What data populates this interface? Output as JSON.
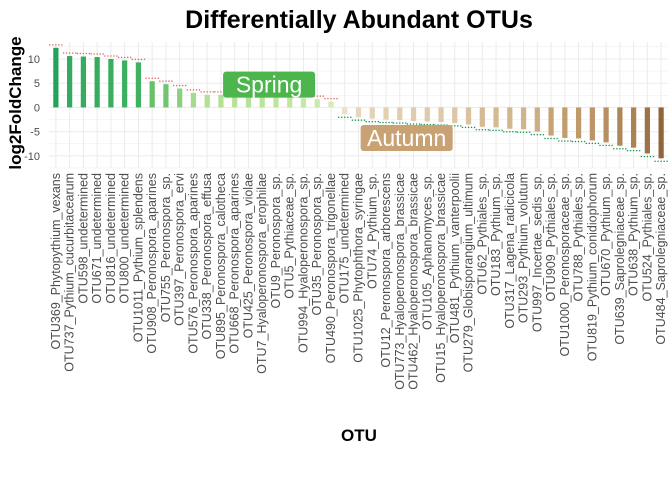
{
  "chart_data": {
    "type": "bar",
    "title": "Differentially Abundant OTUs",
    "xlabel": "OTU",
    "ylabel": "log2FoldChange",
    "ylim": [
      -12.5,
      13.5
    ],
    "yticks": [
      -10,
      -5,
      0,
      5,
      10
    ],
    "grid": true,
    "legend": "none",
    "colors": {
      "high": "#1fa35a",
      "low": "#8b5e34",
      "dots": "#1a9850"
    },
    "annotations": [
      {
        "text": "Spring",
        "category_index": 15,
        "value": 4.7,
        "color": "#4cb64c"
      },
      {
        "text": "Autumn",
        "category_index": 25,
        "value": -6.3,
        "color": "#c8a273"
      }
    ],
    "categories": [
      "OTU369_Phytopythium_vexans",
      "OTU737_Pythium_cucurbitacearum",
      "OTU598_undetermined",
      "OTU671_undetermined",
      "OTU816_undetermined",
      "OTU800_undetermined",
      "OTU1011_Pythium_splendens",
      "OTU908_Peronospora_aparines",
      "OTU755_Peronospora_sp.",
      "OTU397_Peronospora_ervi",
      "OTU576_Peronospora_aparines",
      "OTU338_Peronospora_effusa",
      "OTU895_Peronospora_calotheca",
      "OTU668_Peronospora_aparines",
      "OTU425_Peronospora_violae",
      "OTU7_Hyaloperonospora_erophilae",
      "OTU9_Peronospora_sp.",
      "OTU5_Pythiaceae_sp.",
      "OTU994_Hyaloperonospora_sp.",
      "OTU35_Peronospora_sp.",
      "OTU490_Peronospora_trigonellae",
      "OTU175_undetermined",
      "OTU1025_Phytophthora_syringae",
      "OTU74_Pythium_sp.",
      "OTU12_Peronospora_arborescens",
      "OTU773_Hyaloperonospora_brassicae",
      "OTU462_Hyaloperonospora_brassicae",
      "OTU105_Aphanomyces_sp.",
      "OTU15_Hyaloperonospora_brassicae",
      "OTU481_Pythium_vanterpoolii",
      "OTU279_Globisporangium_ultimum",
      "OTU62_Pythiales_sp.",
      "OTU183_Pythium_sp.",
      "OTU317_Lagena_radicicola",
      "OTU293_Pythium_volutum",
      "OTU997_Incertae_sedis_sp.",
      "OTU909_Pythiales_sp.",
      "OTU1000_Peronosporaceae_sp.",
      "OTU788_Pythiales_sp.",
      "OTU819_Pythium_conidiophorum",
      "OTU670_Pythium_sp.",
      "OTU639_Saprolegniaceae_sp.",
      "OTU638_Pythium_sp.",
      "OTU524_Pythiales_sp.",
      "OTU484_Saprolegniaceae_sp."
    ],
    "values": [
      12.3,
      10.6,
      10.5,
      10.4,
      10.0,
      9.7,
      9.3,
      5.4,
      4.8,
      3.9,
      3.0,
      2.6,
      2.6,
      2.5,
      2.4,
      2.3,
      2.2,
      2.1,
      1.9,
      1.7,
      1.2,
      -1.4,
      -2.0,
      -2.3,
      -2.5,
      -2.6,
      -2.8,
      -2.9,
      -3.0,
      -3.2,
      -3.5,
      -4.0,
      -4.1,
      -4.4,
      -4.5,
      -5.0,
      -5.8,
      -6.3,
      -6.4,
      -6.8,
      -7.2,
      -7.9,
      -8.3,
      -9.5,
      -10.5
    ]
  }
}
